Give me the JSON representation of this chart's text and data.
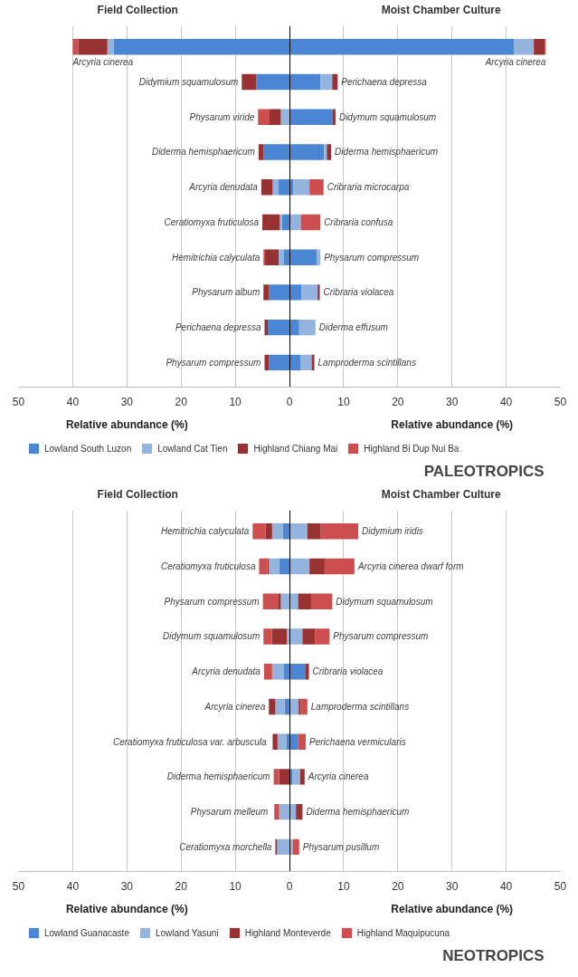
{
  "chart_data": [
    {
      "type": "bar",
      "orientation": "horizontal",
      "stacked": true,
      "title": "PALEOTROPICS",
      "xlabel": "Relative abundance (%)",
      "annotations": [
        "Field Collection",
        "Moist Chamber Culture"
      ],
      "categories": [
        "Arcyria cinerea",
        "Didymium squamulosum",
        "Physarum viride",
        "Diderma hemisphaericum",
        "Arcyria denudata",
        "Ceratiomyxa fruticulosa",
        "Hemitrichia calyculata",
        "Physarum album",
        "Perichaena depressa",
        "Physarum compressum"
      ],
      "y2_categories": [
        "Arcyria cinerea",
        "Perichaena depressa",
        "Didymum squamulosum",
        "Diderma hemisphaericum",
        "Cribraria microcarpa",
        "Cribraria confusa",
        "Physarum compressum",
        "Cribraria violacea",
        "Diderma effusum",
        "Lamproderma scintillans"
      ],
      "series": [
        {
          "name": "Lowland South Luzon",
          "color": "#4a86d4",
          "values": [
            -32.4,
            -6.1,
            0,
            -4.8,
            -2.0,
            -1.4,
            -1.0,
            -3.8,
            -4.0,
            -3.8
          ]
        },
        {
          "name": "Lowland Cat Tien",
          "color": "#92b4de",
          "values": [
            -1.2,
            0,
            -1.6,
            0,
            -1.1,
            -0.4,
            -1.0,
            0,
            0,
            0
          ]
        },
        {
          "name": "Highland Chiang Mai",
          "color": "#983232",
          "values": [
            -5.4,
            -2.7,
            -2.2,
            -0.9,
            -2.1,
            -3.2,
            -2.5,
            -1.0,
            -0.6,
            -0.8
          ]
        },
        {
          "name": "Highland Bi Dup Nui Ba",
          "color": "#cc4e4e",
          "values": [
            -1.0,
            0,
            -2.0,
            0,
            0,
            0,
            -0.3,
            0,
            0,
            0
          ]
        },
        {
          "color": "#4a86d4",
          "values": [
            41.4,
            5.7,
            8.0,
            6.4,
            0.7,
            0,
            5.1,
            2.2,
            1.8,
            2.1
          ]
        },
        {
          "color": "#92b4de",
          "values": [
            3.7,
            2.2,
            0,
            0.5,
            3.0,
            2.1,
            0.6,
            3.0,
            3.0,
            2.0
          ]
        },
        {
          "color": "#983232",
          "values": [
            2.0,
            1.0,
            0.5,
            0.8,
            0,
            0,
            0,
            0.4,
            0,
            0.5
          ]
        },
        {
          "color": "#cc4e4e",
          "values": [
            0.2,
            0,
            0,
            0,
            2.6,
            3.6,
            0,
            0,
            0,
            0
          ]
        }
      ],
      "xlim": [
        -50,
        50
      ],
      "xticks": [
        {
          "value": -50,
          "label": "50"
        },
        {
          "value": -40,
          "label": "40"
        },
        {
          "value": -30,
          "label": "30"
        },
        {
          "value": -20,
          "label": "20"
        },
        {
          "value": -10,
          "label": "10"
        },
        0,
        10,
        20,
        30,
        40,
        50
      ],
      "ref_lines": [
        {
          "axis": "x",
          "value": 0,
          "color": "#000000"
        }
      ],
      "grid": "x",
      "legend": "bottom"
    },
    {
      "type": "bar",
      "orientation": "horizontal",
      "stacked": true,
      "title": "NEOTROPICS",
      "xlabel": "Relative abundance (%)",
      "annotations": [
        "Field Collection",
        "Moist Chamber Culture"
      ],
      "categories": [
        "Hemitrichia calyculata",
        "Ceratiomyxa fruticulosa",
        "Physarum compressum",
        "Didymum squamulosum",
        "Arcyria denudata",
        "Arcyria cinerea",
        "Ceratiomyxa fruticulosa var.  arbuscula",
        "Diderma hemisphaericum",
        "Physarum  melleum",
        "Ceratiomyxa morchella"
      ],
      "y2_categories": [
        "Didymium iridis",
        "Arcyria cinerea dwarf form",
        "Didymum squamulosum",
        "Physarum compressum",
        "Cribraria violacea",
        "Lamproderma scintillans",
        "Perichaena vermicularis",
        "Arcyria cinerea",
        "Diderma hemisphaericum",
        "Physarum  pusillum"
      ],
      "series": [
        {
          "name": "Lowland Guanacaste",
          "color": "#4a86d4",
          "values": [
            -1.2,
            -1.9,
            0,
            0,
            -1.1,
            -0.9,
            -0.5,
            0,
            0,
            0
          ]
        },
        {
          "name": "Lowland Yasuni",
          "color": "#92b4de",
          "values": [
            -2.0,
            -1.9,
            -1.6,
            -0.5,
            -2.1,
            -1.7,
            -1.7,
            0,
            -1.9,
            -2.3
          ]
        },
        {
          "name": "Highland Monteverde",
          "color": "#983232",
          "values": [
            -1.2,
            -0.3,
            -0.4,
            -2.7,
            0,
            -1.2,
            -0.9,
            -1.9,
            0,
            -0.3
          ]
        },
        {
          "name": "Highland Maquipucuna",
          "color": "#cc4e4e",
          "values": [
            -2.4,
            -1.5,
            -2.9,
            -1.6,
            -1.5,
            0,
            0,
            -1.0,
            -0.9,
            0
          ]
        },
        {
          "color": "#4a86d4",
          "values": [
            0,
            0,
            0,
            0,
            2.9,
            0,
            1.6,
            0.6,
            0,
            0
          ]
        },
        {
          "color": "#92b4de",
          "values": [
            3.3,
            3.7,
            1.6,
            2.4,
            0,
            1.7,
            0,
            1.4,
            1.2,
            0.6
          ]
        },
        {
          "color": "#983232",
          "values": [
            2.5,
            2.8,
            2.4,
            2.3,
            0.7,
            0.4,
            0,
            0.8,
            1.2,
            0
          ]
        },
        {
          "color": "#cc4e4e",
          "values": [
            6.9,
            5.5,
            3.9,
            2.7,
            0,
            1.2,
            1.4,
            0,
            0,
            1.2
          ]
        }
      ],
      "xlim": [
        -50,
        50
      ],
      "xticks": [
        {
          "value": -50,
          "label": "50"
        },
        {
          "value": -40,
          "label": "40"
        },
        {
          "value": -30,
          "label": "30"
        },
        {
          "value": -20,
          "label": "20"
        },
        {
          "value": -10,
          "label": "10"
        },
        0,
        10,
        20,
        30,
        40,
        50
      ],
      "ref_lines": [
        {
          "axis": "x",
          "value": 0,
          "color": "#000000"
        }
      ],
      "grid": "x",
      "legend": "bottom"
    }
  ]
}
